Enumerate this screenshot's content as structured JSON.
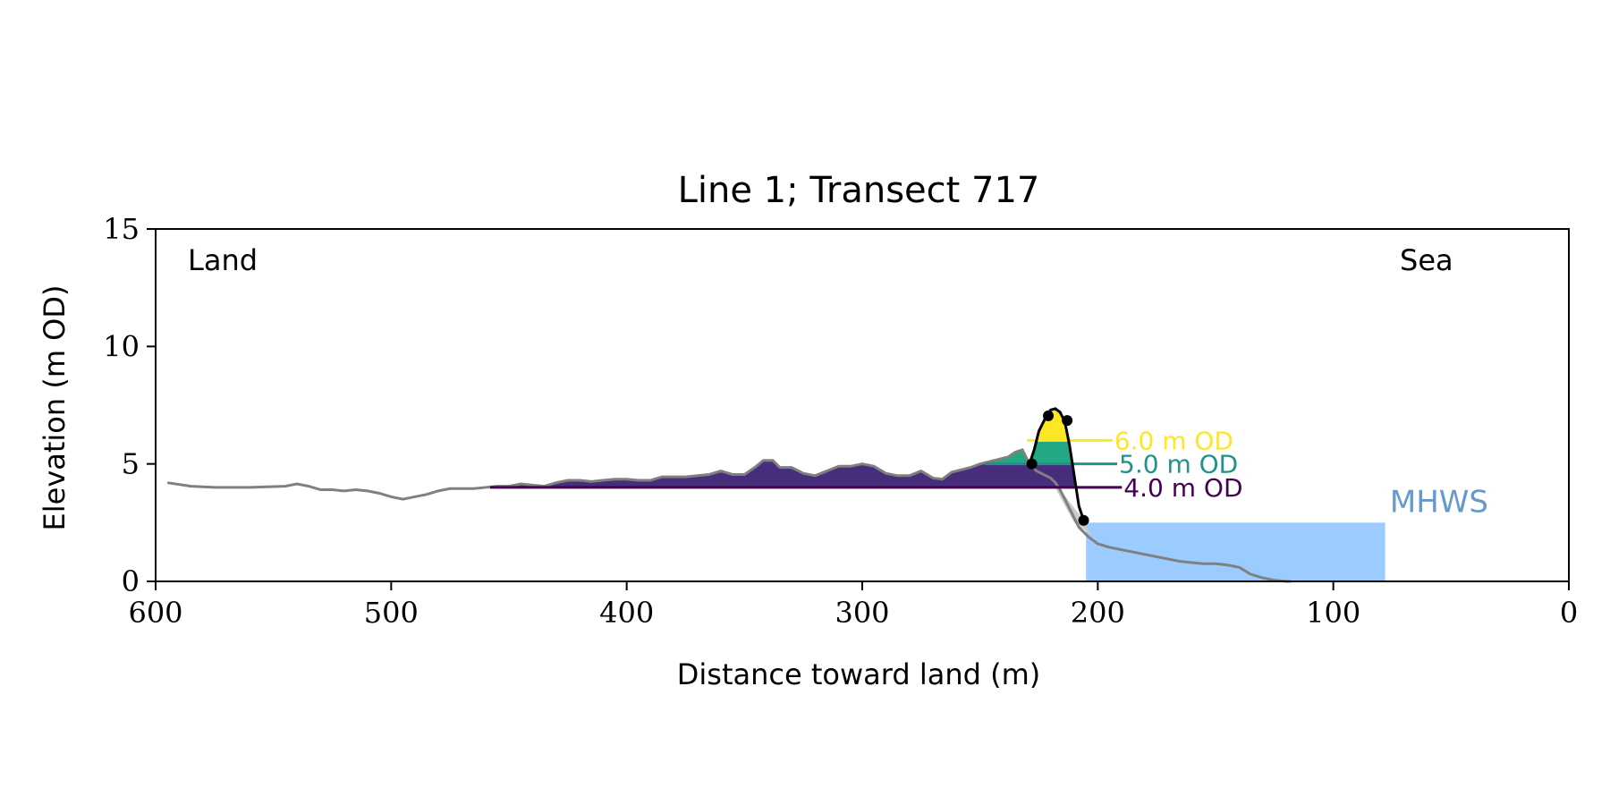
{
  "chart_data": {
    "type": "area",
    "title": "Line 1; Transect 717",
    "xlabel": "Distance toward land (m)",
    "ylabel": "Elevation (m OD)",
    "xlim": [
      600,
      0
    ],
    "ylim": [
      0,
      15
    ],
    "x_ticks": [
      600,
      500,
      400,
      300,
      200,
      100,
      0
    ],
    "y_ticks": [
      0,
      5,
      10,
      15
    ],
    "grid": false,
    "corner_labels": {
      "left": "Land",
      "right": "Sea"
    },
    "colors": {
      "profile": "#808080",
      "level_4": "#440154",
      "level_5": "#21918c",
      "level_6": "#fde725",
      "mhws": "#9bcbff",
      "mhws_label": "#6699cc",
      "cross_section": "#000000",
      "shadow": "#cccccc"
    },
    "profile": {
      "x": [
        595,
        585,
        575,
        560,
        545,
        540,
        535,
        530,
        525,
        520,
        515,
        510,
        505,
        500,
        495,
        490,
        485,
        480,
        475,
        470,
        465,
        460,
        455,
        450,
        445,
        440,
        435,
        430,
        425,
        420,
        415,
        410,
        405,
        400,
        395,
        390,
        385,
        380,
        375,
        370,
        365,
        360,
        355,
        350,
        345,
        342,
        338,
        335,
        330,
        325,
        320,
        315,
        310,
        305,
        300,
        295,
        290,
        285,
        280,
        275,
        270,
        266,
        262,
        258,
        254,
        250,
        246,
        242,
        238,
        235,
        232,
        230,
        228,
        226,
        224,
        222,
        220,
        218,
        216,
        214,
        212,
        210,
        208,
        206,
        204,
        202,
        200,
        195,
        190,
        185,
        180,
        175,
        170,
        165,
        160,
        155,
        150,
        145,
        140,
        135,
        130,
        125,
        120,
        118
      ],
      "y": [
        4.2,
        4.05,
        4.0,
        4.0,
        4.05,
        4.15,
        4.05,
        3.9,
        3.9,
        3.85,
        3.9,
        3.85,
        3.75,
        3.6,
        3.5,
        3.6,
        3.7,
        3.85,
        3.95,
        3.95,
        3.95,
        4.0,
        4.05,
        4.05,
        4.15,
        4.1,
        4.05,
        4.2,
        4.3,
        4.3,
        4.25,
        4.3,
        4.35,
        4.35,
        4.3,
        4.3,
        4.45,
        4.45,
        4.45,
        4.5,
        4.55,
        4.7,
        4.55,
        4.55,
        4.9,
        5.15,
        5.15,
        4.85,
        4.85,
        4.6,
        4.5,
        4.7,
        4.9,
        4.9,
        5.0,
        4.9,
        4.6,
        4.5,
        4.5,
        4.7,
        4.4,
        4.35,
        4.65,
        4.75,
        4.85,
        5.0,
        5.1,
        5.2,
        5.3,
        5.5,
        5.6,
        5.2,
        4.9,
        4.7,
        4.6,
        4.5,
        4.4,
        4.2,
        3.9,
        3.5,
        3.1,
        2.7,
        2.3,
        2.1,
        1.9,
        1.75,
        1.6,
        1.45,
        1.35,
        1.25,
        1.15,
        1.05,
        0.95,
        0.85,
        0.8,
        0.75,
        0.75,
        0.7,
        0.6,
        0.3,
        0.15,
        0.05,
        0.0,
        0.0
      ]
    },
    "levels": [
      {
        "label": "4.0 m OD",
        "value": 4.0,
        "label_x": 189,
        "fill_from_x": 458
      },
      {
        "label": "5.0 m OD",
        "value": 5.0,
        "label_x": 191,
        "fill_from_x": 248
      },
      {
        "label": "6.0 m OD",
        "value": 6.0,
        "label_x": 193,
        "fill_from_x": 230
      }
    ],
    "cross_section": {
      "x": [
        229,
        227,
        225,
        222,
        220,
        218,
        216,
        214,
        212,
        210,
        208,
        206
      ],
      "y": [
        5.0,
        5.6,
        6.4,
        7.0,
        7.3,
        7.35,
        7.2,
        6.8,
        5.8,
        4.5,
        3.2,
        2.6
      ],
      "markers": [
        [
          228,
          5.0
        ],
        [
          221,
          7.05
        ],
        [
          213,
          6.85
        ],
        [
          206,
          2.6
        ]
      ]
    },
    "mhws": {
      "label": "MHWS",
      "value": 2.5,
      "x_from": 205,
      "x_to": 78,
      "label_x": 76
    }
  }
}
